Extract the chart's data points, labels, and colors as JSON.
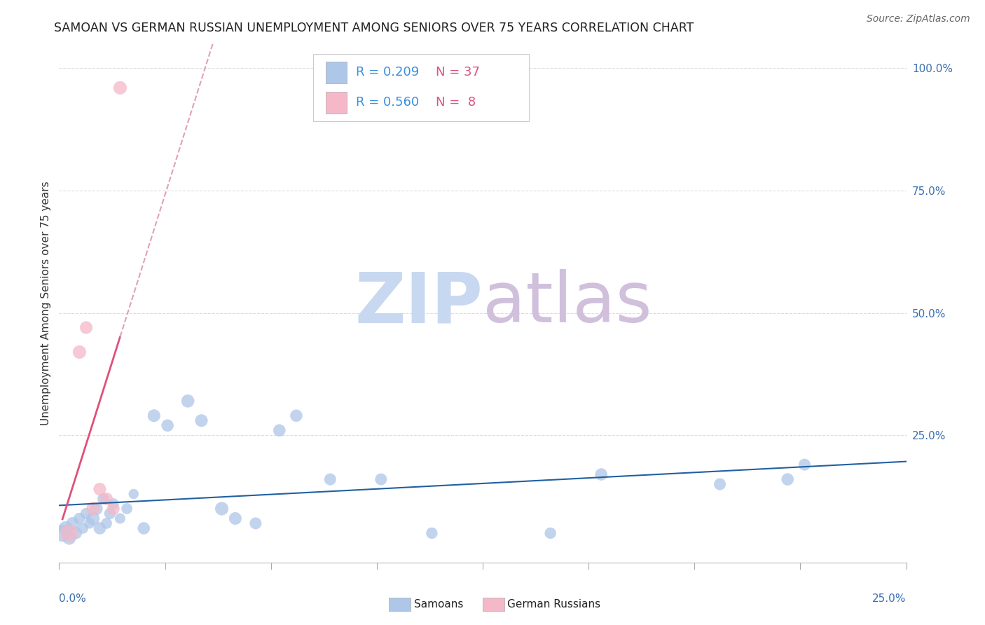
{
  "title": "SAMOAN VS GERMAN RUSSIAN UNEMPLOYMENT AMONG SENIORS OVER 75 YEARS CORRELATION CHART",
  "source": "Source: ZipAtlas.com",
  "ylabel": "Unemployment Among Seniors over 75 years",
  "xlim": [
    0.0,
    0.25
  ],
  "ylim": [
    -0.01,
    1.05
  ],
  "ytick_vals": [
    0.25,
    0.5,
    0.75,
    1.0
  ],
  "ytick_labels": [
    "25.0%",
    "50.0%",
    "75.0%",
    "100.0%"
  ],
  "background_color": "#ffffff",
  "grid_color": "#dddddd",
  "samoans_x": [
    0.001,
    0.002,
    0.003,
    0.004,
    0.005,
    0.006,
    0.007,
    0.008,
    0.009,
    0.01,
    0.011,
    0.012,
    0.013,
    0.014,
    0.015,
    0.016,
    0.018,
    0.02,
    0.022,
    0.025,
    0.028,
    0.032,
    0.038,
    0.042,
    0.048,
    0.052,
    0.058,
    0.065,
    0.07,
    0.08,
    0.095,
    0.11,
    0.145,
    0.16,
    0.195,
    0.215,
    0.22
  ],
  "samoans_y": [
    0.05,
    0.06,
    0.04,
    0.07,
    0.05,
    0.08,
    0.06,
    0.09,
    0.07,
    0.08,
    0.1,
    0.06,
    0.12,
    0.07,
    0.09,
    0.11,
    0.08,
    0.1,
    0.13,
    0.06,
    0.29,
    0.27,
    0.32,
    0.28,
    0.1,
    0.08,
    0.07,
    0.26,
    0.29,
    0.16,
    0.16,
    0.05,
    0.05,
    0.17,
    0.15,
    0.16,
    0.19
  ],
  "samoans_size": [
    300,
    200,
    180,
    160,
    140,
    130,
    120,
    130,
    110,
    180,
    160,
    150,
    130,
    120,
    130,
    120,
    110,
    120,
    100,
    150,
    160,
    150,
    170,
    160,
    180,
    160,
    140,
    150,
    150,
    140,
    140,
    130,
    130,
    150,
    140,
    150,
    140
  ],
  "samoans_color": "#aec6e8",
  "samoans_R": 0.209,
  "samoans_N": 37,
  "german_x": [
    0.003,
    0.006,
    0.008,
    0.01,
    0.012,
    0.014,
    0.016,
    0.018
  ],
  "german_y": [
    0.05,
    0.42,
    0.47,
    0.1,
    0.14,
    0.12,
    0.1,
    0.96
  ],
  "german_size": [
    300,
    180,
    160,
    180,
    160,
    160,
    160,
    180
  ],
  "german_color": "#f4b8c8",
  "german_R": 0.56,
  "german_N": 8,
  "blue_line_color": "#2060a0",
  "pink_line_color": "#e0507a",
  "pink_dashed_color": "#e0a0b8",
  "legend_color_samoan": "#aec6e8",
  "legend_color_german": "#f4b8c8",
  "legend_R_color": "#3a8fdf",
  "legend_N_color": "#e05080"
}
